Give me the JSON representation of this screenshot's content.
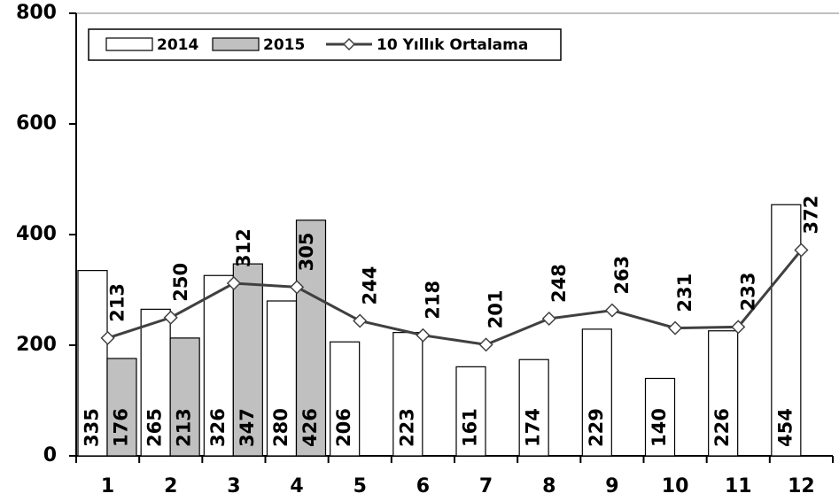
{
  "chart_data": {
    "type": "bar",
    "categories": [
      "1",
      "2",
      "3",
      "4",
      "5",
      "6",
      "7",
      "8",
      "9",
      "10",
      "11",
      "12"
    ],
    "series": [
      {
        "name": "2014",
        "type": "bar",
        "color": "#ffffff",
        "values": [
          335,
          265,
          326,
          280,
          206,
          223,
          161,
          174,
          229,
          140,
          226,
          454
        ]
      },
      {
        "name": "2015",
        "type": "bar",
        "color": "#c0c0c0",
        "values": [
          176,
          213,
          347,
          426,
          null,
          null,
          null,
          null,
          null,
          null,
          null,
          null
        ]
      },
      {
        "name": "10 Yıllık Ortalama",
        "type": "line",
        "color": "#404040",
        "values": [
          213,
          250,
          312,
          305,
          244,
          218,
          201,
          248,
          263,
          231,
          233,
          372
        ]
      }
    ],
    "ylim": [
      0,
      800
    ],
    "yticks": [
      0,
      200,
      400,
      600,
      800
    ],
    "legend": "upper left"
  }
}
